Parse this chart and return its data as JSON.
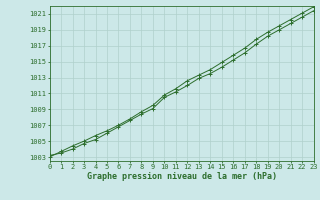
{
  "x": [
    0,
    1,
    2,
    3,
    4,
    5,
    6,
    7,
    8,
    9,
    10,
    11,
    12,
    13,
    14,
    15,
    16,
    17,
    18,
    19,
    20,
    21,
    22,
    23
  ],
  "line1": [
    1003.2,
    1003.5,
    1004.0,
    1004.7,
    1005.2,
    1006.0,
    1006.8,
    1007.6,
    1008.4,
    1009.1,
    1010.5,
    1011.2,
    1012.0,
    1012.9,
    1013.5,
    1014.3,
    1015.2,
    1016.1,
    1017.2,
    1018.2,
    1019.0,
    1019.8,
    1020.6,
    1021.4
  ],
  "line2": [
    1003.0,
    1003.7,
    1004.4,
    1005.0,
    1005.7,
    1006.3,
    1007.0,
    1007.8,
    1008.7,
    1009.5,
    1010.8,
    1011.6,
    1012.6,
    1013.3,
    1014.0,
    1014.9,
    1015.8,
    1016.7,
    1017.8,
    1018.7,
    1019.5,
    1020.3,
    1021.1,
    1021.9
  ],
  "line_color": "#2d6e2d",
  "bg_color": "#cce8e8",
  "grid_color": "#b0d0cc",
  "xlabel": "Graphe pression niveau de la mer (hPa)",
  "xlim": [
    0,
    23
  ],
  "ylim": [
    1002.5,
    1022.0
  ],
  "yticks": [
    1003,
    1005,
    1007,
    1009,
    1011,
    1013,
    1015,
    1017,
    1019,
    1021
  ],
  "xticks": [
    0,
    1,
    2,
    3,
    4,
    5,
    6,
    7,
    8,
    9,
    10,
    11,
    12,
    13,
    14,
    15,
    16,
    17,
    18,
    19,
    20,
    21,
    22,
    23
  ]
}
